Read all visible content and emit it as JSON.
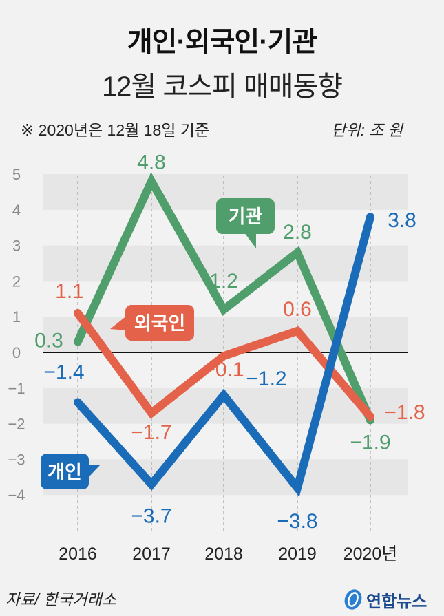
{
  "header": {
    "title_line1": "개인·외국인·기관",
    "title_line2": "12월 코스피 매매동향",
    "note": "※ 2020년은 12월 18일 기준",
    "unit": "단위: 조 원"
  },
  "footer": {
    "source": "자료/ 한국거래소",
    "logo_text": "연합뉴스"
  },
  "colors": {
    "individual": "#1a6bb8",
    "foreign": "#e4614a",
    "institution": "#4f9e6c",
    "axis_text": "#888888",
    "band": "#e6e6e6",
    "background": "#f2f2f2"
  },
  "chart_data": {
    "type": "line",
    "title": "개인·외국인·기관 12월 코스피 매매동향",
    "subtitle": "※ 2020년은 12월 18일 기준",
    "xlabel": "",
    "ylabel": "단위: 조 원",
    "categories": [
      "2016",
      "2017",
      "2018",
      "2019",
      "2020년"
    ],
    "yticks": [
      5,
      4,
      3,
      2,
      1,
      0,
      -1,
      -2,
      -3,
      -4
    ],
    "ylim": [
      -4,
      5
    ],
    "grid": "alternating horizontal bands",
    "series": [
      {
        "name": "기관",
        "color": "#4f9e6c",
        "values": [
          0.3,
          4.8,
          1.2,
          2.8,
          -1.9
        ],
        "labels": [
          "0.3",
          "4.8",
          "1.2",
          "2.8",
          "−1.9"
        ]
      },
      {
        "name": "외국인",
        "color": "#e4614a",
        "values": [
          1.1,
          -1.7,
          -0.1,
          0.6,
          -1.8
        ],
        "labels": [
          "1.1",
          "−1.7",
          "−0.1",
          "0.6",
          "−1.8"
        ]
      },
      {
        "name": "개인",
        "color": "#1a6bb8",
        "values": [
          -1.4,
          -3.7,
          -1.2,
          -3.8,
          3.8
        ],
        "labels": [
          "−1.4",
          "−3.7",
          "−1.2",
          "−3.8",
          "3.8"
        ]
      }
    ],
    "legend": "callout bubbles",
    "source": "자료/ 한국거래소"
  }
}
